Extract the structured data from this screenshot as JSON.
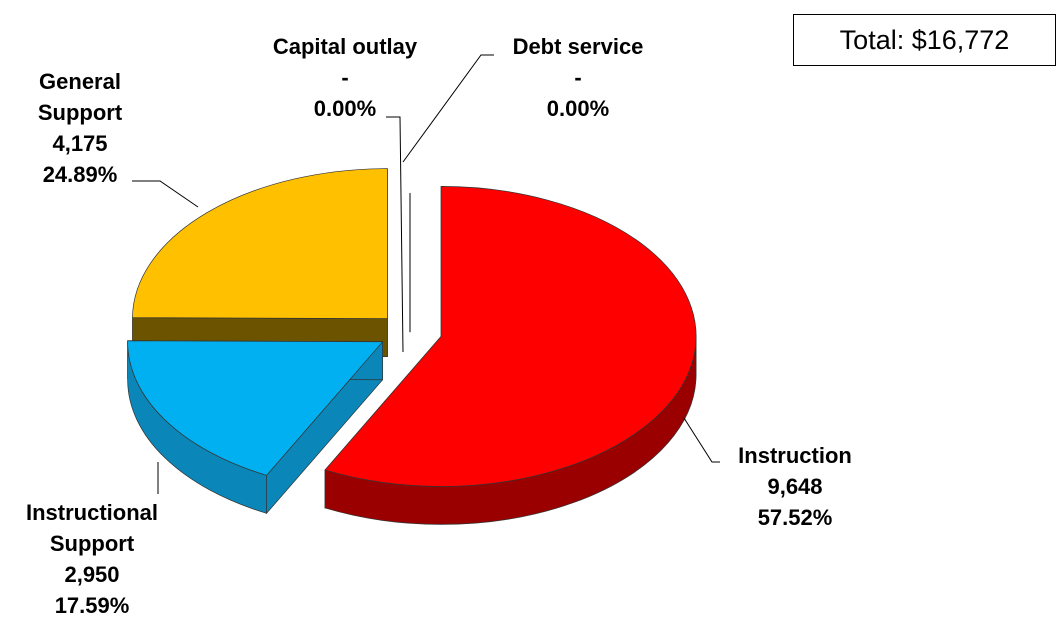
{
  "chart_data": {
    "type": "pie",
    "total_label": "Total: $16,772",
    "categories": [
      "Instruction",
      "Instructional Support",
      "General Support",
      "Capital outlay",
      "Debt service"
    ],
    "values": [
      9648,
      2950,
      4175,
      0,
      0
    ],
    "value_labels": [
      "9,648",
      "2,950",
      "4,175",
      "-",
      "-"
    ],
    "percent_labels": [
      "57.52%",
      "17.59%",
      "24.89%",
      "0.00%",
      "0.00%"
    ],
    "colors": [
      "#ff0000",
      "#00b0f0",
      "#ffc000",
      "#808080",
      "#808080"
    ],
    "side_colors": [
      "#9a0000",
      "#0a86b8",
      "#6b5300",
      "#606060",
      "#606060"
    ],
    "start_angle": 0,
    "direction": "clockwise",
    "exploded": true,
    "three_d": true
  }
}
